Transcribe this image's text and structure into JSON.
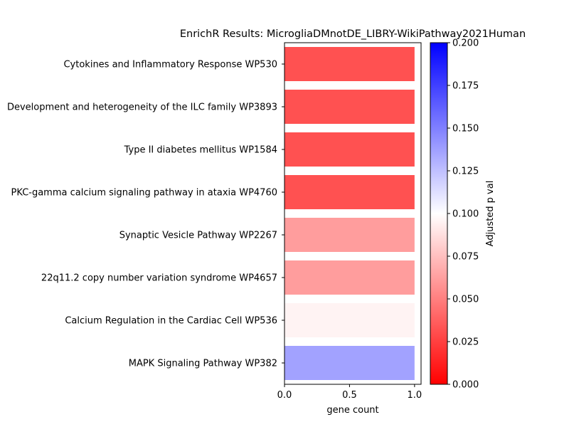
{
  "chart_data": {
    "type": "bar",
    "orientation": "horizontal",
    "title": "EnrichR Results: MicrogliaDMnotDE_LIBRY-WikiPathway2021Human",
    "xlabel": "gene count",
    "ylabel": "",
    "xlim": [
      0,
      1.05
    ],
    "xticks": [
      {
        "value": 0.0,
        "label": "0.0"
      },
      {
        "value": 0.5,
        "label": "0.5"
      },
      {
        "value": 1.0,
        "label": "1.0"
      }
    ],
    "categories": [
      "Cytokines and Inflammatory Response WP530",
      "Development and heterogeneity of the ILC family WP3893",
      "Type II diabetes mellitus WP1584",
      "PKC-gamma calcium signaling pathway in ataxia WP4760",
      "Synaptic Vesicle Pathway WP2267",
      "22q11.2 copy number variation syndrome WP4657",
      "Calcium Regulation in the Cardiac Cell WP536",
      "MAPK Signaling Pathway WP382"
    ],
    "values": [
      1,
      1,
      1,
      1,
      1,
      1,
      1,
      1
    ],
    "adjusted_p_values": [
      0.0317,
      0.0317,
      0.0317,
      0.0317,
      0.0617,
      0.0617,
      0.0954,
      0.1365
    ],
    "colorbar": {
      "label": "Adjusted p val",
      "range": [
        0.0,
        0.2
      ],
      "colormap": [
        "#ff0000",
        "#ffffff",
        "#0000ff"
      ],
      "ticks": [
        {
          "value": 0.0,
          "label": "0.000"
        },
        {
          "value": 0.025,
          "label": "0.025"
        },
        {
          "value": 0.05,
          "label": "0.050"
        },
        {
          "value": 0.075,
          "label": "0.075"
        },
        {
          "value": 0.1,
          "label": "0.100"
        },
        {
          "value": 0.125,
          "label": "0.125"
        },
        {
          "value": 0.15,
          "label": "0.150"
        },
        {
          "value": 0.175,
          "label": "0.175"
        },
        {
          "value": 0.2,
          "label": "0.200"
        }
      ]
    },
    "grid": false
  }
}
